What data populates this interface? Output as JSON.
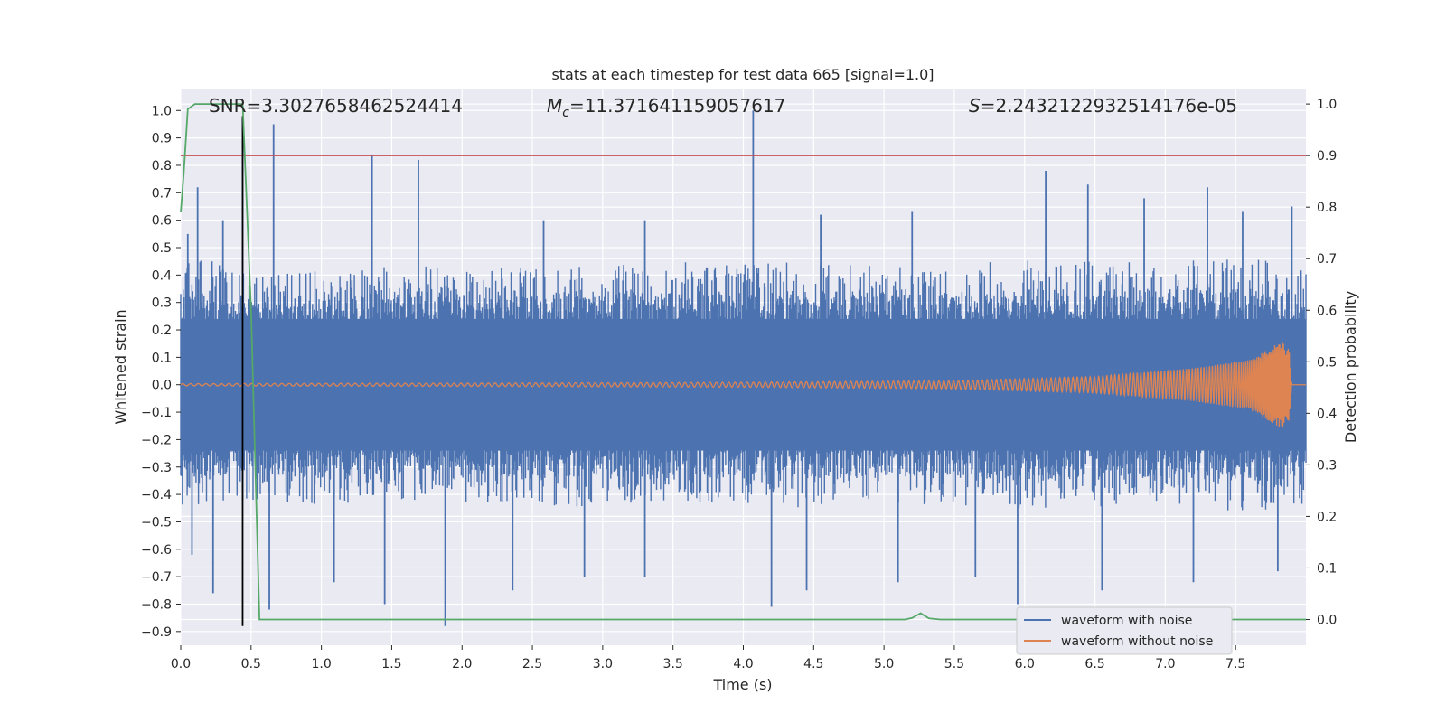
{
  "chart_data": {
    "type": "line",
    "title": "stats at each timestep for test data 665 [signal=1.0]",
    "xlabel": "Time (s)",
    "ylabel": "Whitened strain",
    "y2label": "Detection probability",
    "xlim": [
      0.0,
      8.0
    ],
    "ylim": [
      -0.95,
      1.08
    ],
    "y2lim": [
      -0.05,
      1.03
    ],
    "xticks": [
      "0.0",
      "0.5",
      "1.0",
      "1.5",
      "2.0",
      "2.5",
      "3.0",
      "3.5",
      "4.0",
      "4.5",
      "5.0",
      "5.5",
      "6.0",
      "6.5",
      "7.0",
      "7.5"
    ],
    "yticks": [
      "-0.9",
      "-0.8",
      "-0.7",
      "-0.6",
      "-0.5",
      "-0.4",
      "-0.3",
      "-0.2",
      "-0.1",
      "0.0",
      "0.1",
      "0.2",
      "0.3",
      "0.4",
      "0.5",
      "0.6",
      "0.7",
      "0.8",
      "0.9",
      "1.0"
    ],
    "y2ticks": [
      "0.0",
      "0.1",
      "0.2",
      "0.3",
      "0.4",
      "0.5",
      "0.6",
      "0.7",
      "0.8",
      "0.9",
      "1.0"
    ],
    "grid": true,
    "legend_position": "lower-right",
    "annotations": {
      "snr": "SNR=3.3027658462524414",
      "mc_symbol": "M",
      "mc_sub": "c",
      "mc_value": "=11.371641159057617",
      "s_symbol": "S",
      "s_value": "=2.2432122932514176e-05"
    },
    "series": [
      {
        "name": "waveform with noise",
        "color": "#4c72b0",
        "envelope_upper": [
          [
            0.0,
            0.5
          ],
          [
            0.5,
            0.4
          ],
          [
            1.0,
            0.42
          ],
          [
            1.5,
            0.45
          ],
          [
            2.0,
            0.42
          ],
          [
            2.5,
            0.43
          ],
          [
            3.0,
            0.44
          ],
          [
            3.5,
            0.45
          ],
          [
            4.0,
            0.44
          ],
          [
            4.5,
            0.45
          ],
          [
            5.0,
            0.43
          ],
          [
            5.5,
            0.44
          ],
          [
            6.0,
            0.46
          ],
          [
            6.5,
            0.45
          ],
          [
            7.0,
            0.46
          ],
          [
            7.5,
            0.46
          ],
          [
            8.0,
            0.45
          ]
        ],
        "envelope_lower": [
          [
            0.0,
            -0.45
          ],
          [
            0.5,
            -0.42
          ],
          [
            1.0,
            -0.44
          ],
          [
            1.5,
            -0.42
          ],
          [
            2.0,
            -0.43
          ],
          [
            2.5,
            -0.44
          ],
          [
            3.0,
            -0.45
          ],
          [
            3.5,
            -0.42
          ],
          [
            4.0,
            -0.44
          ],
          [
            4.5,
            -0.45
          ],
          [
            5.0,
            -0.43
          ],
          [
            5.5,
            -0.44
          ],
          [
            6.0,
            -0.46
          ],
          [
            6.5,
            -0.45
          ],
          [
            7.0,
            -0.44
          ],
          [
            7.5,
            -0.46
          ],
          [
            8.0,
            -0.45
          ]
        ],
        "peaks": [
          [
            0.05,
            0.55
          ],
          [
            0.12,
            0.72
          ],
          [
            0.3,
            0.6
          ],
          [
            0.44,
            0.97
          ],
          [
            0.66,
            0.95
          ],
          [
            1.36,
            0.84
          ],
          [
            1.69,
            0.82
          ],
          [
            2.58,
            0.6
          ],
          [
            3.3,
            0.6
          ],
          [
            4.07,
            1.0
          ],
          [
            4.55,
            0.62
          ],
          [
            5.2,
            0.63
          ],
          [
            6.15,
            0.78
          ],
          [
            6.45,
            0.73
          ],
          [
            6.85,
            0.68
          ],
          [
            7.3,
            0.72
          ],
          [
            7.55,
            0.63
          ],
          [
            7.9,
            0.65
          ]
        ],
        "troughs": [
          [
            0.08,
            -0.62
          ],
          [
            0.23,
            -0.76
          ],
          [
            0.44,
            -0.42
          ],
          [
            0.63,
            -0.82
          ],
          [
            1.09,
            -0.72
          ],
          [
            1.45,
            -0.8
          ],
          [
            1.88,
            -0.88
          ],
          [
            2.36,
            -0.75
          ],
          [
            2.87,
            -0.7
          ],
          [
            3.3,
            -0.7
          ],
          [
            4.2,
            -0.81
          ],
          [
            4.45,
            -0.75
          ],
          [
            5.1,
            -0.72
          ],
          [
            5.65,
            -0.7
          ],
          [
            5.95,
            -0.8
          ],
          [
            6.55,
            -0.75
          ],
          [
            7.2,
            -0.72
          ],
          [
            7.8,
            -0.68
          ]
        ]
      },
      {
        "name": "waveform without noise",
        "color": "#dd8452",
        "chirp_amplitude": [
          [
            0.0,
            0.004
          ],
          [
            2.0,
            0.006
          ],
          [
            4.0,
            0.009
          ],
          [
            5.5,
            0.015
          ],
          [
            6.5,
            0.03
          ],
          [
            7.2,
            0.06
          ],
          [
            7.6,
            0.09
          ],
          [
            7.83,
            0.16
          ],
          [
            7.88,
            0.13
          ],
          [
            7.9,
            0.0
          ],
          [
            8.0,
            0.0
          ]
        ],
        "chirp_frequency": [
          [
            0.0,
            30
          ],
          [
            4.0,
            38
          ],
          [
            6.5,
            55
          ],
          [
            7.5,
            90
          ],
          [
            7.85,
            200
          ]
        ]
      },
      {
        "name": "detection probability",
        "color": "#55a868",
        "axis": "right",
        "points": [
          [
            0.0,
            0.79
          ],
          [
            0.02,
            0.86
          ],
          [
            0.05,
            0.99
          ],
          [
            0.1,
            1.0
          ],
          [
            0.44,
            1.0
          ],
          [
            0.5,
            0.6
          ],
          [
            0.56,
            0.0
          ],
          [
            5.15,
            0.0
          ],
          [
            5.2,
            0.003
          ],
          [
            5.26,
            0.012
          ],
          [
            5.32,
            0.002
          ],
          [
            5.4,
            0.0
          ],
          [
            8.0,
            0.0
          ]
        ]
      }
    ],
    "threshold_line": {
      "y2": 0.9,
      "color": "#c44e52"
    },
    "vertical_marker": {
      "x": 0.44,
      "color": "#000000"
    },
    "legend": [
      "waveform with noise",
      "waveform without noise"
    ]
  }
}
